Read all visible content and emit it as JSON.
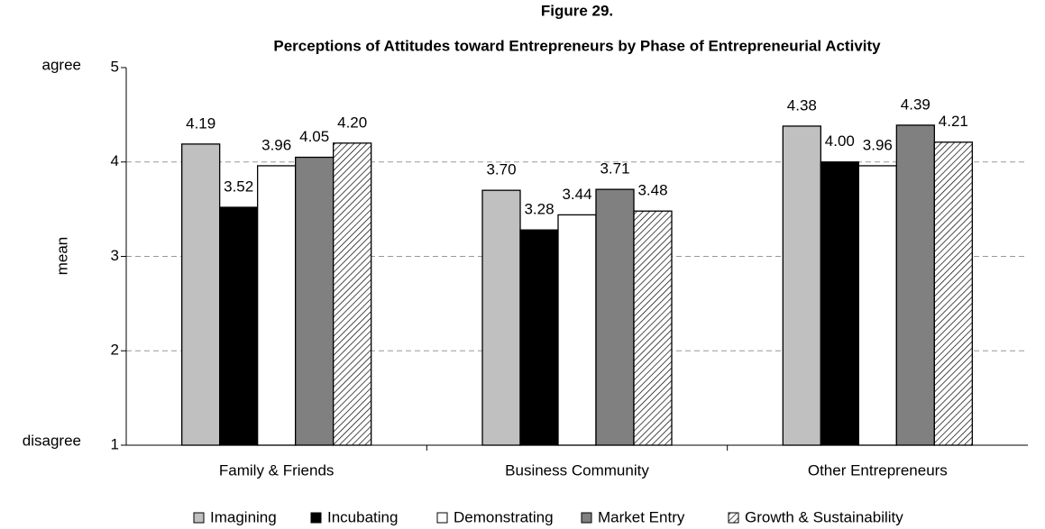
{
  "chart_data": {
    "type": "bar",
    "title": "Figure 29.",
    "subtitle": "Perceptions of Attitudes toward Entrepreneurs by Phase of Entrepreneurial Activity",
    "y_label": "mean",
    "y_max_label": "agree",
    "y_min_label": "disagree",
    "categories": [
      "Family & Friends",
      "Business Community",
      "Other Entrepreneurs"
    ],
    "series": [
      {
        "name": "Imagining",
        "color": "#c0c0c0",
        "values": [
          4.19,
          3.7,
          4.38
        ],
        "value_labels": [
          "4.19",
          "3.70",
          "4.38"
        ]
      },
      {
        "name": "Incubating",
        "color": "#000000",
        "values": [
          3.52,
          3.28,
          4.0
        ],
        "value_labels": [
          "3.52",
          "3.28",
          "4.00"
        ]
      },
      {
        "name": "Demonstrating",
        "color": "#ffffff",
        "values": [
          3.96,
          3.44,
          3.96
        ],
        "value_labels": [
          "3.96",
          "3.44",
          "3.96"
        ]
      },
      {
        "name": "Market Entry",
        "color": "#808080",
        "values": [
          4.05,
          3.71,
          4.39
        ],
        "value_labels": [
          "4.05",
          "3.71",
          "4.39"
        ]
      },
      {
        "name": "Growth & Sustainability",
        "color": "#ffffff",
        "hatch": true,
        "values": [
          4.2,
          3.48,
          4.21
        ],
        "value_labels": [
          "4.20",
          "3.48",
          "4.21"
        ]
      }
    ],
    "ylim": [
      1,
      5
    ],
    "yticks": [
      1,
      2,
      3,
      4,
      5
    ],
    "grid": true,
    "legend": "bottom"
  }
}
